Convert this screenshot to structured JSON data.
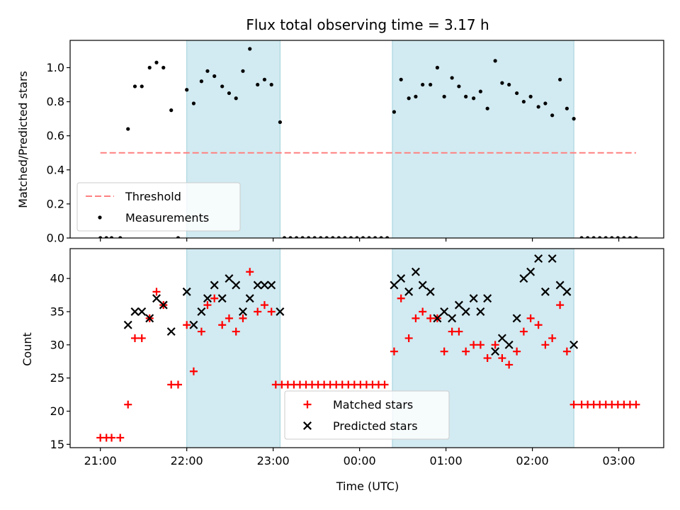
{
  "chart_data": {
    "title": "Flux total observing time = 3.17 h",
    "xlabel": "Time (UTC)",
    "x_axis": {
      "tick_labels": [
        "21:00",
        "22:00",
        "23:00",
        "00:00",
        "01:00",
        "02:00",
        "03:00"
      ],
      "tick_hours": [
        21,
        22,
        23,
        24,
        25,
        26,
        27
      ],
      "xlim_hours": [
        20.65,
        27.52
      ]
    },
    "shaded_intervals_hours": [
      [
        22.0,
        23.08
      ],
      [
        24.38,
        26.48
      ]
    ],
    "shade_color": "#add8e6",
    "panels": [
      {
        "type": "scatter",
        "ylabel": "Matched/Predicted stars",
        "ylim": [
          0,
          1.16
        ],
        "yticks": [
          0.0,
          0.2,
          0.4,
          0.6,
          0.8,
          1.0
        ],
        "ytick_labels": [
          "0.0",
          "0.2",
          "0.4",
          "0.6",
          "0.8",
          "1.0"
        ],
        "legend_position": "lower-left",
        "threshold": {
          "name": "Threshold",
          "value": 0.5,
          "x_range_hours": [
            21.0,
            27.2
          ],
          "color": "#ff8080"
        },
        "series": [
          {
            "name": "Measurements",
            "marker": "dot",
            "color": "#000000",
            "x_hours": [
              21.0,
              21.07,
              21.13,
              21.23,
              21.32,
              21.4,
              21.48,
              21.57,
              21.65,
              21.73,
              21.82,
              21.9,
              22.0,
              22.08,
              22.17,
              22.24,
              22.32,
              22.41,
              22.49,
              22.57,
              22.65,
              22.73,
              22.82,
              22.9,
              22.98,
              23.08,
              23.13,
              23.2,
              23.27,
              23.34,
              23.41,
              23.48,
              23.55,
              23.62,
              23.69,
              23.76,
              23.83,
              23.9,
              23.97,
              24.04,
              24.11,
              24.18,
              24.25,
              24.32,
              24.4,
              24.48,
              24.57,
              24.65,
              24.73,
              24.82,
              24.9,
              24.98,
              25.07,
              25.15,
              25.23,
              25.32,
              25.4,
              25.48,
              25.57,
              25.65,
              25.73,
              25.82,
              25.9,
              25.98,
              26.07,
              26.15,
              26.23,
              26.32,
              26.4,
              26.48,
              26.57,
              26.64,
              26.71,
              26.78,
              26.85,
              26.92,
              26.99,
              27.06,
              27.13,
              27.2
            ],
            "values": [
              0,
              0,
              0,
              0,
              0.64,
              0.89,
              0.89,
              1.0,
              1.03,
              1.0,
              0.75,
              0,
              0.87,
              0.79,
              0.92,
              0.98,
              0.95,
              0.89,
              0.85,
              0.82,
              0.98,
              1.11,
              0.9,
              0.93,
              0.9,
              0.68,
              0,
              0,
              0,
              0,
              0,
              0,
              0,
              0,
              0,
              0,
              0,
              0,
              0,
              0,
              0,
              0,
              0,
              0,
              0.74,
              0.93,
              0.82,
              0.83,
              0.9,
              0.9,
              1.0,
              0.83,
              0.94,
              0.89,
              0.83,
              0.82,
              0.86,
              0.76,
              1.04,
              0.91,
              0.9,
              0.85,
              0.8,
              0.83,
              0.77,
              0.79,
              0.72,
              0.93,
              0.76,
              0.7,
              0,
              0,
              0,
              0,
              0,
              0,
              0,
              0,
              0,
              0
            ]
          }
        ]
      },
      {
        "type": "scatter",
        "ylabel": "Count",
        "ylim": [
          14.5,
          44.5
        ],
        "yticks": [
          15,
          20,
          25,
          30,
          35,
          40
        ],
        "ytick_labels": [
          "15",
          "20",
          "25",
          "30",
          "35",
          "40"
        ],
        "legend_position": "lower-center",
        "series": [
          {
            "name": "Matched stars",
            "marker": "plus",
            "color": "#ff0000",
            "x_hours": [
              21.0,
              21.07,
              21.13,
              21.23,
              21.32,
              21.4,
              21.48,
              21.57,
              21.65,
              21.73,
              21.82,
              21.9,
              22.0,
              22.08,
              22.17,
              22.24,
              22.32,
              22.41,
              22.49,
              22.57,
              22.65,
              22.73,
              22.82,
              22.9,
              22.98,
              23.03,
              23.1,
              23.17,
              23.24,
              23.31,
              23.38,
              23.45,
              23.52,
              23.59,
              23.66,
              23.73,
              23.8,
              23.87,
              23.94,
              24.01,
              24.08,
              24.15,
              24.22,
              24.29,
              24.4,
              24.48,
              24.57,
              24.65,
              24.73,
              24.82,
              24.9,
              24.98,
              25.07,
              25.15,
              25.23,
              25.32,
              25.4,
              25.48,
              25.57,
              25.65,
              25.73,
              25.82,
              25.9,
              25.98,
              26.07,
              26.15,
              26.23,
              26.32,
              26.4,
              26.48,
              26.57,
              26.64,
              26.71,
              26.78,
              26.85,
              26.92,
              26.99,
              27.06,
              27.13,
              27.2
            ],
            "values": [
              16,
              16,
              16,
              16,
              21,
              31,
              31,
              34,
              38,
              36,
              24,
              24,
              33,
              26,
              32,
              36,
              37,
              33,
              34,
              32,
              34,
              41,
              35,
              36,
              35,
              24,
              24,
              24,
              24,
              24,
              24,
              24,
              24,
              24,
              24,
              24,
              24,
              24,
              24,
              24,
              24,
              24,
              24,
              24,
              29,
              37,
              31,
              34,
              35,
              34,
              34,
              29,
              32,
              32,
              29,
              30,
              30,
              28,
              30,
              28,
              27,
              29,
              32,
              34,
              33,
              30,
              31,
              36,
              29,
              21,
              21,
              21,
              21,
              21,
              21,
              21,
              21,
              21,
              21,
              21
            ]
          },
          {
            "name": "Predicted stars",
            "marker": "x",
            "color": "#000000",
            "x_hours": [
              21.32,
              21.4,
              21.48,
              21.57,
              21.65,
              21.73,
              21.82,
              22.0,
              22.08,
              22.17,
              22.24,
              22.32,
              22.41,
              22.49,
              22.57,
              22.65,
              22.73,
              22.82,
              22.9,
              22.98,
              23.08,
              24.4,
              24.48,
              24.57,
              24.65,
              24.73,
              24.82,
              24.9,
              24.98,
              25.07,
              25.15,
              25.23,
              25.32,
              25.4,
              25.48,
              25.57,
              25.65,
              25.73,
              25.82,
              25.9,
              25.98,
              26.07,
              26.15,
              26.23,
              26.32,
              26.4,
              26.48
            ],
            "values": [
              33,
              35,
              35,
              34,
              37,
              36,
              32,
              38,
              33,
              35,
              37,
              39,
              37,
              40,
              39,
              35,
              37,
              39,
              39,
              39,
              35,
              39,
              40,
              38,
              41,
              39,
              38,
              34,
              35,
              34,
              36,
              35,
              37,
              35,
              37,
              29,
              31,
              30,
              34,
              40,
              41,
              43,
              38,
              43,
              39,
              38,
              30
            ]
          }
        ]
      }
    ]
  }
}
